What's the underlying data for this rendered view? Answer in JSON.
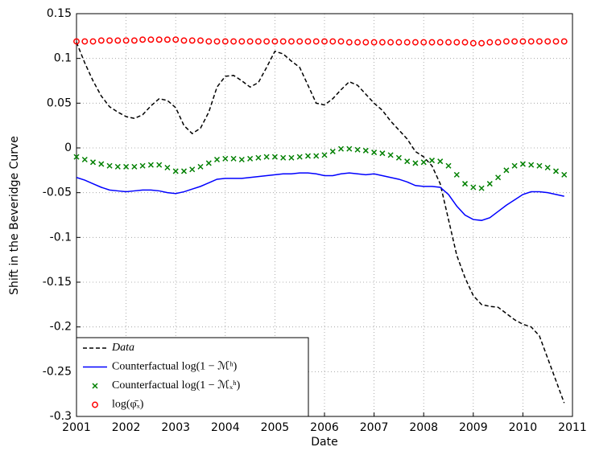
{
  "chart_data": {
    "type": "line",
    "xlabel": "Date",
    "ylabel": "Shift in the Beveridge Curve",
    "xlim": [
      2001,
      2011
    ],
    "xticks": [
      2001,
      2002,
      2003,
      2004,
      2005,
      2006,
      2007,
      2008,
      2009,
      2010,
      2011
    ],
    "ylim": [
      -0.3,
      0.15
    ],
    "yticks": [
      -0.3,
      -0.25,
      -0.2,
      -0.15,
      -0.1,
      -0.05,
      0,
      0.05,
      0.1,
      0.15
    ],
    "grid": true,
    "legend": "lower left",
    "x": [
      2001,
      2001.167,
      2001.333,
      2001.5,
      2001.667,
      2001.833,
      2002,
      2002.167,
      2002.333,
      2002.5,
      2002.667,
      2002.833,
      2003,
      2003.167,
      2003.333,
      2003.5,
      2003.667,
      2003.833,
      2004,
      2004.167,
      2004.333,
      2004.5,
      2004.667,
      2004.833,
      2005,
      2005.167,
      2005.333,
      2005.5,
      2005.667,
      2005.833,
      2006,
      2006.167,
      2006.333,
      2006.5,
      2006.667,
      2006.833,
      2007,
      2007.167,
      2007.333,
      2007.5,
      2007.667,
      2007.833,
      2008,
      2008.167,
      2008.333,
      2008.5,
      2008.667,
      2008.833,
      2009,
      2009.167,
      2009.333,
      2009.5,
      2009.667,
      2009.833,
      2010,
      2010.167,
      2010.333,
      2010.5,
      2010.667,
      2010.833
    ],
    "series": [
      {
        "name": "Data",
        "color": "#000000",
        "style": "dashed",
        "values": [
          0.118,
          0.095,
          0.075,
          0.058,
          0.046,
          0.04,
          0.035,
          0.033,
          0.037,
          0.047,
          0.055,
          0.053,
          0.045,
          0.025,
          0.016,
          0.022,
          0.04,
          0.068,
          0.08,
          0.081,
          0.075,
          0.068,
          0.073,
          0.09,
          0.108,
          0.105,
          0.097,
          0.09,
          0.07,
          0.05,
          0.048,
          0.055,
          0.065,
          0.074,
          0.07,
          0.06,
          0.05,
          0.042,
          0.03,
          0.02,
          0.01,
          -0.004,
          -0.01,
          -0.02,
          -0.04,
          -0.08,
          -0.12,
          -0.145,
          -0.165,
          -0.175,
          -0.177,
          -0.178,
          -0.185,
          -0.192,
          -0.197,
          -0.2,
          -0.21,
          -0.235,
          -0.26,
          -0.285
        ]
      },
      {
        "name": "Counterfactual log(1 − ℳʰ)",
        "color": "#0000ff",
        "style": "solid",
        "values": [
          -0.033,
          -0.036,
          -0.04,
          -0.044,
          -0.047,
          -0.048,
          -0.049,
          -0.048,
          -0.047,
          -0.047,
          -0.048,
          -0.05,
          -0.051,
          -0.049,
          -0.046,
          -0.043,
          -0.039,
          -0.035,
          -0.034,
          -0.034,
          -0.034,
          -0.033,
          -0.032,
          -0.031,
          -0.03,
          -0.029,
          -0.029,
          -0.028,
          -0.028,
          -0.029,
          -0.031,
          -0.031,
          -0.029,
          -0.028,
          -0.029,
          -0.03,
          -0.029,
          -0.031,
          -0.033,
          -0.035,
          -0.038,
          -0.042,
          -0.043,
          -0.043,
          -0.044,
          -0.052,
          -0.065,
          -0.075,
          -0.08,
          -0.081,
          -0.078,
          -0.071,
          -0.064,
          -0.058,
          -0.052,
          -0.049,
          -0.049,
          -0.05,
          -0.052,
          -0.054
        ]
      },
      {
        "name": "Counterfactual log(1 − ℳₓʰ)",
        "color": "#008000",
        "style": "x",
        "values": [
          -0.01,
          -0.013,
          -0.016,
          -0.018,
          -0.02,
          -0.021,
          -0.021,
          -0.021,
          -0.02,
          -0.019,
          -0.019,
          -0.022,
          -0.026,
          -0.026,
          -0.024,
          -0.021,
          -0.017,
          -0.013,
          -0.012,
          -0.012,
          -0.013,
          -0.012,
          -0.011,
          -0.01,
          -0.01,
          -0.011,
          -0.011,
          -0.01,
          -0.009,
          -0.009,
          -0.008,
          -0.004,
          -0.001,
          -0.001,
          -0.002,
          -0.003,
          -0.005,
          -0.006,
          -0.008,
          -0.011,
          -0.015,
          -0.017,
          -0.016,
          -0.014,
          -0.015,
          -0.02,
          -0.03,
          -0.04,
          -0.044,
          -0.045,
          -0.04,
          -0.033,
          -0.025,
          -0.02,
          -0.018,
          -0.019,
          -0.02,
          -0.022,
          -0.026,
          -0.03
        ]
      },
      {
        "name": "log(φ̄ₓ)",
        "color": "#ff0000",
        "style": "circle",
        "values": [
          0.119,
          0.119,
          0.119,
          0.12,
          0.12,
          0.12,
          0.12,
          0.12,
          0.121,
          0.121,
          0.121,
          0.121,
          0.121,
          0.12,
          0.12,
          0.12,
          0.119,
          0.119,
          0.119,
          0.119,
          0.119,
          0.119,
          0.119,
          0.119,
          0.119,
          0.119,
          0.119,
          0.119,
          0.119,
          0.119,
          0.119,
          0.119,
          0.119,
          0.118,
          0.118,
          0.118,
          0.118,
          0.118,
          0.118,
          0.118,
          0.118,
          0.118,
          0.118,
          0.118,
          0.118,
          0.118,
          0.118,
          0.118,
          0.117,
          0.117,
          0.118,
          0.118,
          0.119,
          0.119,
          0.119,
          0.119,
          0.119,
          0.119,
          0.119,
          0.119
        ]
      }
    ]
  }
}
